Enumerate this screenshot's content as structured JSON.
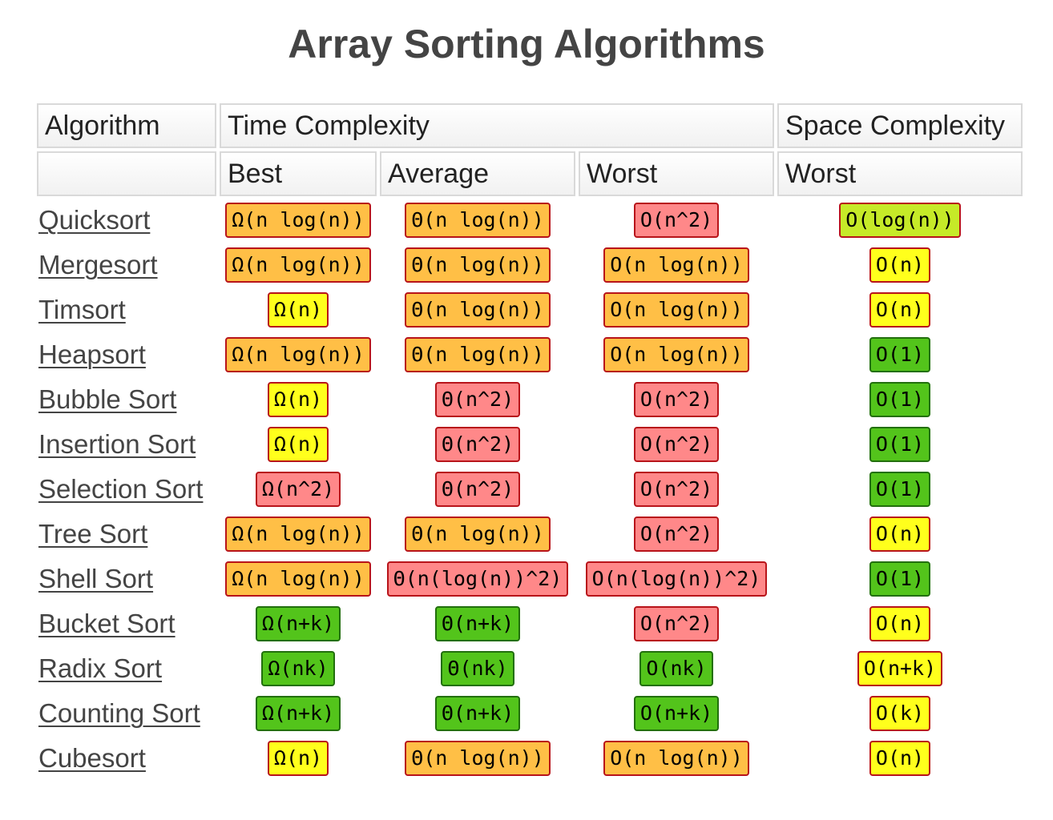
{
  "title": "Array Sorting Algorithms",
  "header": {
    "algorithm": "Algorithm",
    "time_complexity": "Time Complexity",
    "space_complexity": "Space Complexity",
    "best": "Best",
    "average": "Average",
    "worst": "Worst",
    "space_worst": "Worst"
  },
  "colors": {
    "green": "#53c41b",
    "light_green": "#c6ea28",
    "yellow": "#ffff1c",
    "orange": "#ffbf46",
    "red": "#ff8889",
    "border_red": "#b8141a",
    "border_green": "#226f0d"
  },
  "rows": [
    {
      "name": "Quicksort",
      "best": {
        "text": "Ω(n log(n))",
        "level": "orange"
      },
      "average": {
        "text": "Θ(n log(n))",
        "level": "orange"
      },
      "worst": {
        "text": "O(n^2)",
        "level": "red"
      },
      "space": {
        "text": "O(log(n))",
        "level": "light_green"
      }
    },
    {
      "name": "Mergesort",
      "best": {
        "text": "Ω(n log(n))",
        "level": "orange"
      },
      "average": {
        "text": "Θ(n log(n))",
        "level": "orange"
      },
      "worst": {
        "text": "O(n log(n))",
        "level": "orange"
      },
      "space": {
        "text": "O(n)",
        "level": "yellow"
      }
    },
    {
      "name": "Timsort",
      "best": {
        "text": "Ω(n)",
        "level": "yellow"
      },
      "average": {
        "text": "Θ(n log(n))",
        "level": "orange"
      },
      "worst": {
        "text": "O(n log(n))",
        "level": "orange"
      },
      "space": {
        "text": "O(n)",
        "level": "yellow"
      }
    },
    {
      "name": "Heapsort",
      "best": {
        "text": "Ω(n log(n))",
        "level": "orange"
      },
      "average": {
        "text": "Θ(n log(n))",
        "level": "orange"
      },
      "worst": {
        "text": "O(n log(n))",
        "level": "orange"
      },
      "space": {
        "text": "O(1)",
        "level": "green"
      }
    },
    {
      "name": "Bubble Sort",
      "best": {
        "text": "Ω(n)",
        "level": "yellow"
      },
      "average": {
        "text": "Θ(n^2)",
        "level": "red"
      },
      "worst": {
        "text": "O(n^2)",
        "level": "red"
      },
      "space": {
        "text": "O(1)",
        "level": "green"
      }
    },
    {
      "name": "Insertion Sort",
      "best": {
        "text": "Ω(n)",
        "level": "yellow"
      },
      "average": {
        "text": "Θ(n^2)",
        "level": "red"
      },
      "worst": {
        "text": "O(n^2)",
        "level": "red"
      },
      "space": {
        "text": "O(1)",
        "level": "green"
      }
    },
    {
      "name": "Selection Sort",
      "best": {
        "text": "Ω(n^2)",
        "level": "red"
      },
      "average": {
        "text": "Θ(n^2)",
        "level": "red"
      },
      "worst": {
        "text": "O(n^2)",
        "level": "red"
      },
      "space": {
        "text": "O(1)",
        "level": "green"
      }
    },
    {
      "name": "Tree Sort",
      "best": {
        "text": "Ω(n log(n))",
        "level": "orange"
      },
      "average": {
        "text": "Θ(n log(n))",
        "level": "orange"
      },
      "worst": {
        "text": "O(n^2)",
        "level": "red"
      },
      "space": {
        "text": "O(n)",
        "level": "yellow"
      }
    },
    {
      "name": "Shell Sort",
      "best": {
        "text": "Ω(n log(n))",
        "level": "orange"
      },
      "average": {
        "text": "Θ(n(log(n))^2)",
        "level": "red"
      },
      "worst": {
        "text": "O(n(log(n))^2)",
        "level": "red"
      },
      "space": {
        "text": "O(1)",
        "level": "green"
      }
    },
    {
      "name": "Bucket Sort",
      "best": {
        "text": "Ω(n+k)",
        "level": "green"
      },
      "average": {
        "text": "Θ(n+k)",
        "level": "green"
      },
      "worst": {
        "text": "O(n^2)",
        "level": "red"
      },
      "space": {
        "text": "O(n)",
        "level": "yellow"
      }
    },
    {
      "name": "Radix Sort",
      "best": {
        "text": "Ω(nk)",
        "level": "green"
      },
      "average": {
        "text": "Θ(nk)",
        "level": "green"
      },
      "worst": {
        "text": "O(nk)",
        "level": "green"
      },
      "space": {
        "text": "O(n+k)",
        "level": "yellow"
      }
    },
    {
      "name": "Counting Sort",
      "best": {
        "text": "Ω(n+k)",
        "level": "green"
      },
      "average": {
        "text": "Θ(n+k)",
        "level": "green"
      },
      "worst": {
        "text": "O(n+k)",
        "level": "green"
      },
      "space": {
        "text": "O(k)",
        "level": "yellow"
      }
    },
    {
      "name": "Cubesort",
      "best": {
        "text": "Ω(n)",
        "level": "yellow"
      },
      "average": {
        "text": "Θ(n log(n))",
        "level": "orange"
      },
      "worst": {
        "text": "O(n log(n))",
        "level": "orange"
      },
      "space": {
        "text": "O(n)",
        "level": "yellow"
      }
    }
  ]
}
